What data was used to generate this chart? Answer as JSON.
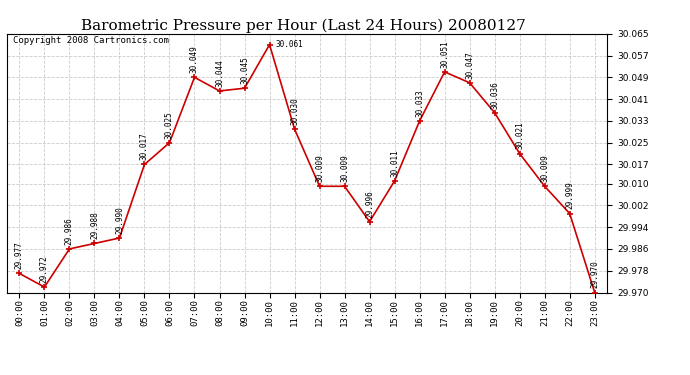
{
  "title": "Barometric Pressure per Hour (Last 24 Hours) 20080127",
  "copyright": "Copyright 2008 Cartronics.com",
  "hours": [
    "00:00",
    "01:00",
    "02:00",
    "03:00",
    "04:00",
    "05:00",
    "06:00",
    "07:00",
    "08:00",
    "09:00",
    "10:00",
    "11:00",
    "12:00",
    "13:00",
    "14:00",
    "15:00",
    "16:00",
    "17:00",
    "18:00",
    "19:00",
    "20:00",
    "21:00",
    "22:00",
    "23:00"
  ],
  "values": [
    29.977,
    29.972,
    29.986,
    29.988,
    29.99,
    30.017,
    30.025,
    30.049,
    30.044,
    30.045,
    30.061,
    30.03,
    30.009,
    30.009,
    29.996,
    30.011,
    30.033,
    30.051,
    30.047,
    30.036,
    30.021,
    30.009,
    29.999,
    29.97
  ],
  "line_color": "#cc0000",
  "marker_color": "#cc0000",
  "bg_color": "#ffffff",
  "grid_color": "#cccccc",
  "ylim_min": 29.97,
  "ylim_max": 30.065,
  "yticks": [
    29.97,
    29.978,
    29.986,
    29.994,
    30.002,
    30.01,
    30.017,
    30.025,
    30.033,
    30.041,
    30.049,
    30.057,
    30.065
  ],
  "title_fontsize": 11,
  "copyright_fontsize": 6.5,
  "label_fontsize": 5.5,
  "tick_fontsize": 6.5,
  "peak_label_index": 10,
  "peak_label_text": "30.061"
}
